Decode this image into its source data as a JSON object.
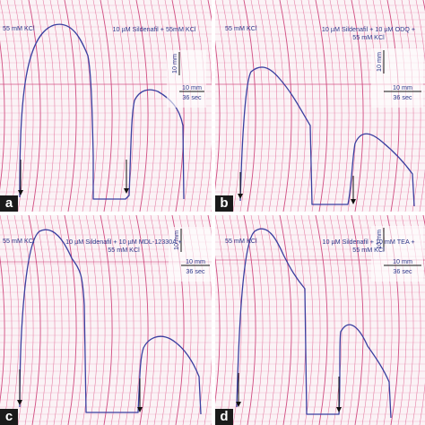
{
  "colors": {
    "grid_line": "#e0608f",
    "grid_bold": "#c92f6c",
    "trace": "#3a3fa0",
    "paper": "#fbf3f6",
    "label_bg": "#1a1a1a",
    "text": "#2e3a8c"
  },
  "panels": [
    {
      "letter": "a",
      "kcl_label": "55 mM KCl",
      "treatment_label": "10 µM Sildenafil + 55mM KCl",
      "scale_vertical": "10 mm",
      "scale_horizontal": "10 mm",
      "scale_time": "36 sec"
    },
    {
      "letter": "b",
      "kcl_label": "55 mM KCl",
      "treatment_label": "10 µM Sildenafil + 10 µM ODQ +\n55 mM KCl",
      "scale_vertical": "10 mm",
      "scale_horizontal": "10 mm",
      "scale_time": "36 sec"
    },
    {
      "letter": "c",
      "kcl_label": "55 mM KCl",
      "treatment_label": "10 µM Sildenafil + 10 µM MDL-12330A +\n55 mM KCl",
      "scale_vertical": "10 mm",
      "scale_horizontal": "10 mm",
      "scale_time": "36 sec"
    },
    {
      "letter": "d",
      "kcl_label": "55 mM KCl",
      "treatment_label": "10 µM Sildenafil + 10 mM TEA +\n55 mM KCl",
      "scale_vertical": "10 mm",
      "scale_horizontal": "10 mm",
      "scale_time": "36 sec"
    }
  ]
}
